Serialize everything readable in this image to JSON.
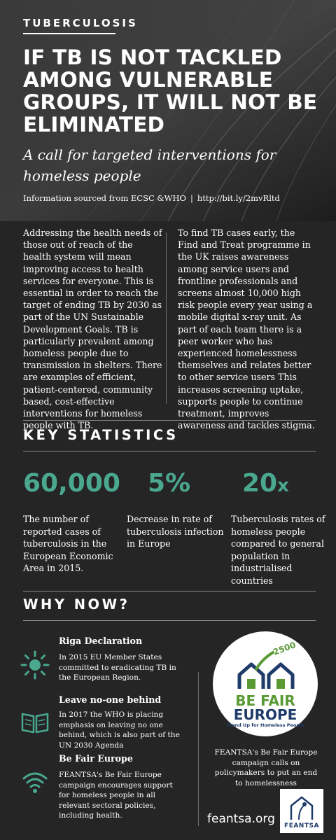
{
  "header": {
    "kicker": "TUBERCULOSIS",
    "headline": "IF TB IS NOT TACKLED AMONG VULNERABLE GROUPS, IT WILL NOT BE ELIMINATED",
    "subheadline": "A call for targeted interventions for homeless people",
    "source_text": "Information sourced from ECSC &WHO",
    "source_separator": "|",
    "source_link": "http://bit.ly/2mvRltd"
  },
  "intro": {
    "left_paragraph": "Addressing the health needs of those out of reach of the health system will mean improving access to health services for everyone. This is essential in order to reach the target of ending TB by 2030 as part of the UN Sustainable Development Goals. TB is particularly prevalent among homeless people due to transmission in shelters. There are examples of efficient, patient-centered, community based, cost-effective interventions for homeless people with TB.",
    "right_paragraph": "To find  TB cases early, the Find and Treat programme  in the UK raises awareness among service users and frontline professionals and screens almost 10,000 high risk people every year using a mobile digital x-ray unit. As part of each team there is a peer worker who has experienced homelessness themselves and relates better to other service users This increases screening uptake, supports people to continue treatment, improves awareness and tackles stigma."
  },
  "key_statistics": {
    "title": "KEY STATISTICS",
    "accent_color": "#4aa88f",
    "stats": [
      {
        "value": "60,000",
        "suffix": "",
        "description": "The number of reported cases of tuberculosis in the European Economic Area in 2015."
      },
      {
        "value": "5%",
        "suffix": "",
        "description": "Decrease in rate of tuberculosis infection in Europe"
      },
      {
        "value": "20",
        "suffix": "x",
        "description": "Tuberculosis rates of homeless people compared to general population in industrialised countries"
      }
    ]
  },
  "why_now": {
    "title": "WHY NOW?",
    "items": [
      {
        "icon": "sun-icon",
        "title": "Riga Declaration",
        "body": "In 2015 EU Member States committed to eradicating TB in the European Region."
      },
      {
        "icon": "open-book-icon",
        "title": "Leave no-one behind",
        "body": "In 2017 the WHO is placing emphasis on leaving no one behind, which is also part of the UN 2030 Agenda"
      },
      {
        "icon": "wifi-icon",
        "title": "Be Fair Europe",
        "body": "FEANTSA's Be Fair Europe campaign encourages support for homeless people in all relevant sectoral policies, including health."
      }
    ]
  },
  "campaign_logo": {
    "icon": "houses-logo-icon",
    "badge": "2500",
    "word1": "BE FAIR",
    "word2": "EUROPE",
    "tagline": "Stand Up for Homeless People",
    "caption": "FEANTSA's Be Fair Europe campaign calls on policymakers to put an end to homelessness",
    "green": "#5a9a35",
    "navy": "#1e3b6a"
  },
  "footer": {
    "website": "feantsa.org",
    "org_logo_text": "FEANTSA"
  }
}
